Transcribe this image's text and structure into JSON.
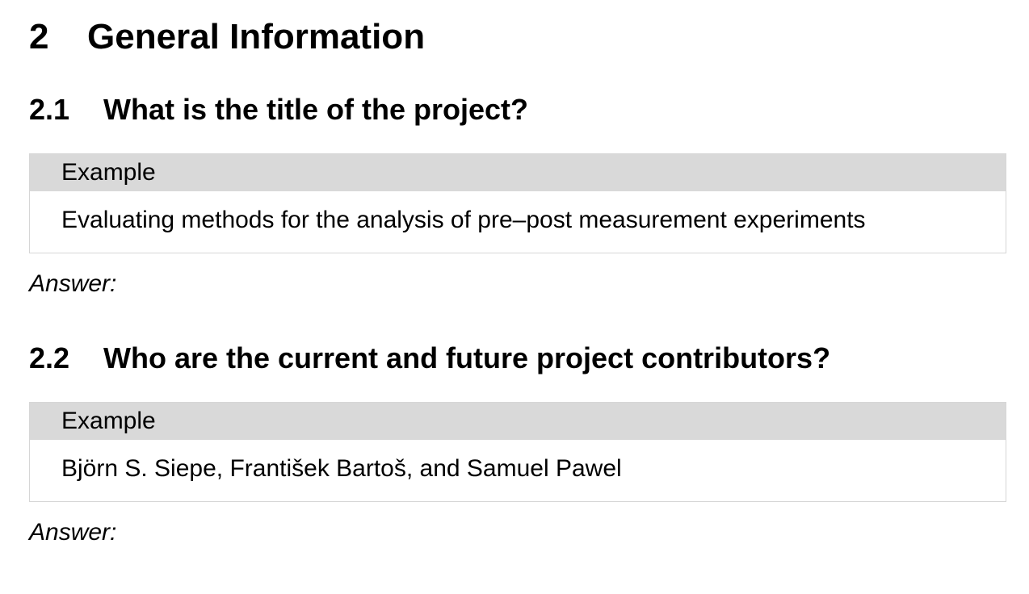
{
  "section": {
    "number": "2",
    "title": "General Information"
  },
  "subsections": [
    {
      "number": "2.1",
      "title": "What is the title of the project?",
      "example_label": "Example",
      "example_text": "Evaluating methods for the analysis of pre–post measurement experiments",
      "answer_label": "Answer:"
    },
    {
      "number": "2.2",
      "title": "Who are the current and future project contributors?",
      "example_label": "Example",
      "example_text": "Björn S. Siepe, František Bartoš, and Samuel Pawel",
      "answer_label": "Answer:"
    }
  ]
}
